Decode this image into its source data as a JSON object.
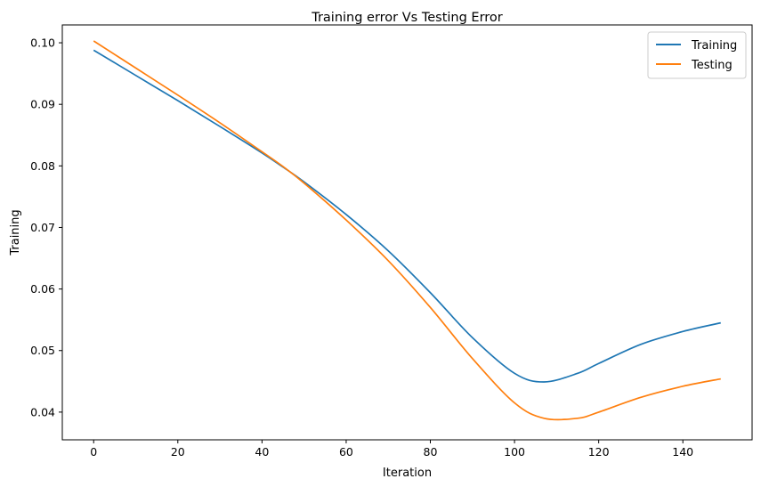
{
  "chart_data": {
    "type": "line",
    "title": "Training error Vs Testing Error",
    "xlabel": "Iteration",
    "ylabel": "Training",
    "xlim": [
      -7.45,
      156.45
    ],
    "ylim": [
      0.0355,
      0.1029
    ],
    "x_ticks": [
      0,
      20,
      40,
      60,
      80,
      100,
      120,
      140
    ],
    "y_ticks": [
      0.04,
      0.05,
      0.06,
      0.07,
      0.08,
      0.09,
      0.1
    ],
    "y_tick_labels": [
      "0.04",
      "0.05",
      "0.06",
      "0.07",
      "0.08",
      "0.09",
      "0.10"
    ],
    "grid": false,
    "legend_position": "top-right",
    "x": [
      0,
      10,
      20,
      30,
      40,
      45,
      50,
      60,
      70,
      80,
      90,
      100,
      107,
      115,
      120,
      130,
      140,
      149
    ],
    "series": [
      {
        "name": "Training",
        "color": "#1f77b4",
        "values": [
          0.0988,
          0.0947,
          0.0906,
          0.0864,
          0.0821,
          0.0798,
          0.0774,
          0.0721,
          0.0662,
          0.0594,
          0.0521,
          0.0463,
          0.0449,
          0.0463,
          0.0479,
          0.051,
          0.0531,
          0.0545
        ]
      },
      {
        "name": "Testing",
        "color": "#ff7f0e",
        "values": [
          0.1003,
          0.0959,
          0.0915,
          0.087,
          0.0823,
          0.0799,
          0.0772,
          0.0712,
          0.0646,
          0.057,
          0.0487,
          0.0415,
          0.039,
          0.039,
          0.04,
          0.0424,
          0.0442,
          0.0454
        ]
      }
    ]
  }
}
